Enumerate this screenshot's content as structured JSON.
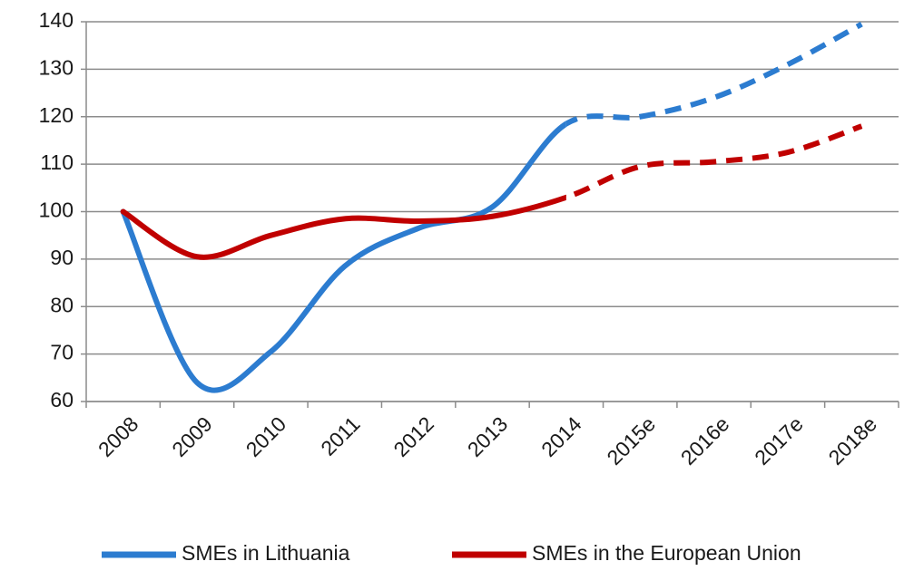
{
  "chart_data": {
    "type": "line",
    "categories": [
      "2008",
      "2009",
      "2010",
      "2011",
      "2012",
      "2013",
      "2014",
      "2015e",
      "2016e",
      "2017e",
      "2018e"
    ],
    "series": [
      {
        "name": "SMEs in Lithuania",
        "color": "#2c7cd0",
        "values": [
          100,
          64,
          70.5,
          88.5,
          96.5,
          101,
          118.5,
          120,
          124,
          131,
          139.5
        ]
      },
      {
        "name": "SMEs in the European Union",
        "color": "#c00000",
        "values": [
          100,
          90.5,
          95,
          98.5,
          98,
          99,
          103,
          109.5,
          110.5,
          112.5,
          118
        ]
      }
    ],
    "dashed_from": "2014",
    "ylim": [
      60,
      140
    ],
    "yticks": [
      60,
      70,
      80,
      90,
      100,
      110,
      120,
      130,
      140
    ],
    "grid": true,
    "legend": "bottom"
  }
}
